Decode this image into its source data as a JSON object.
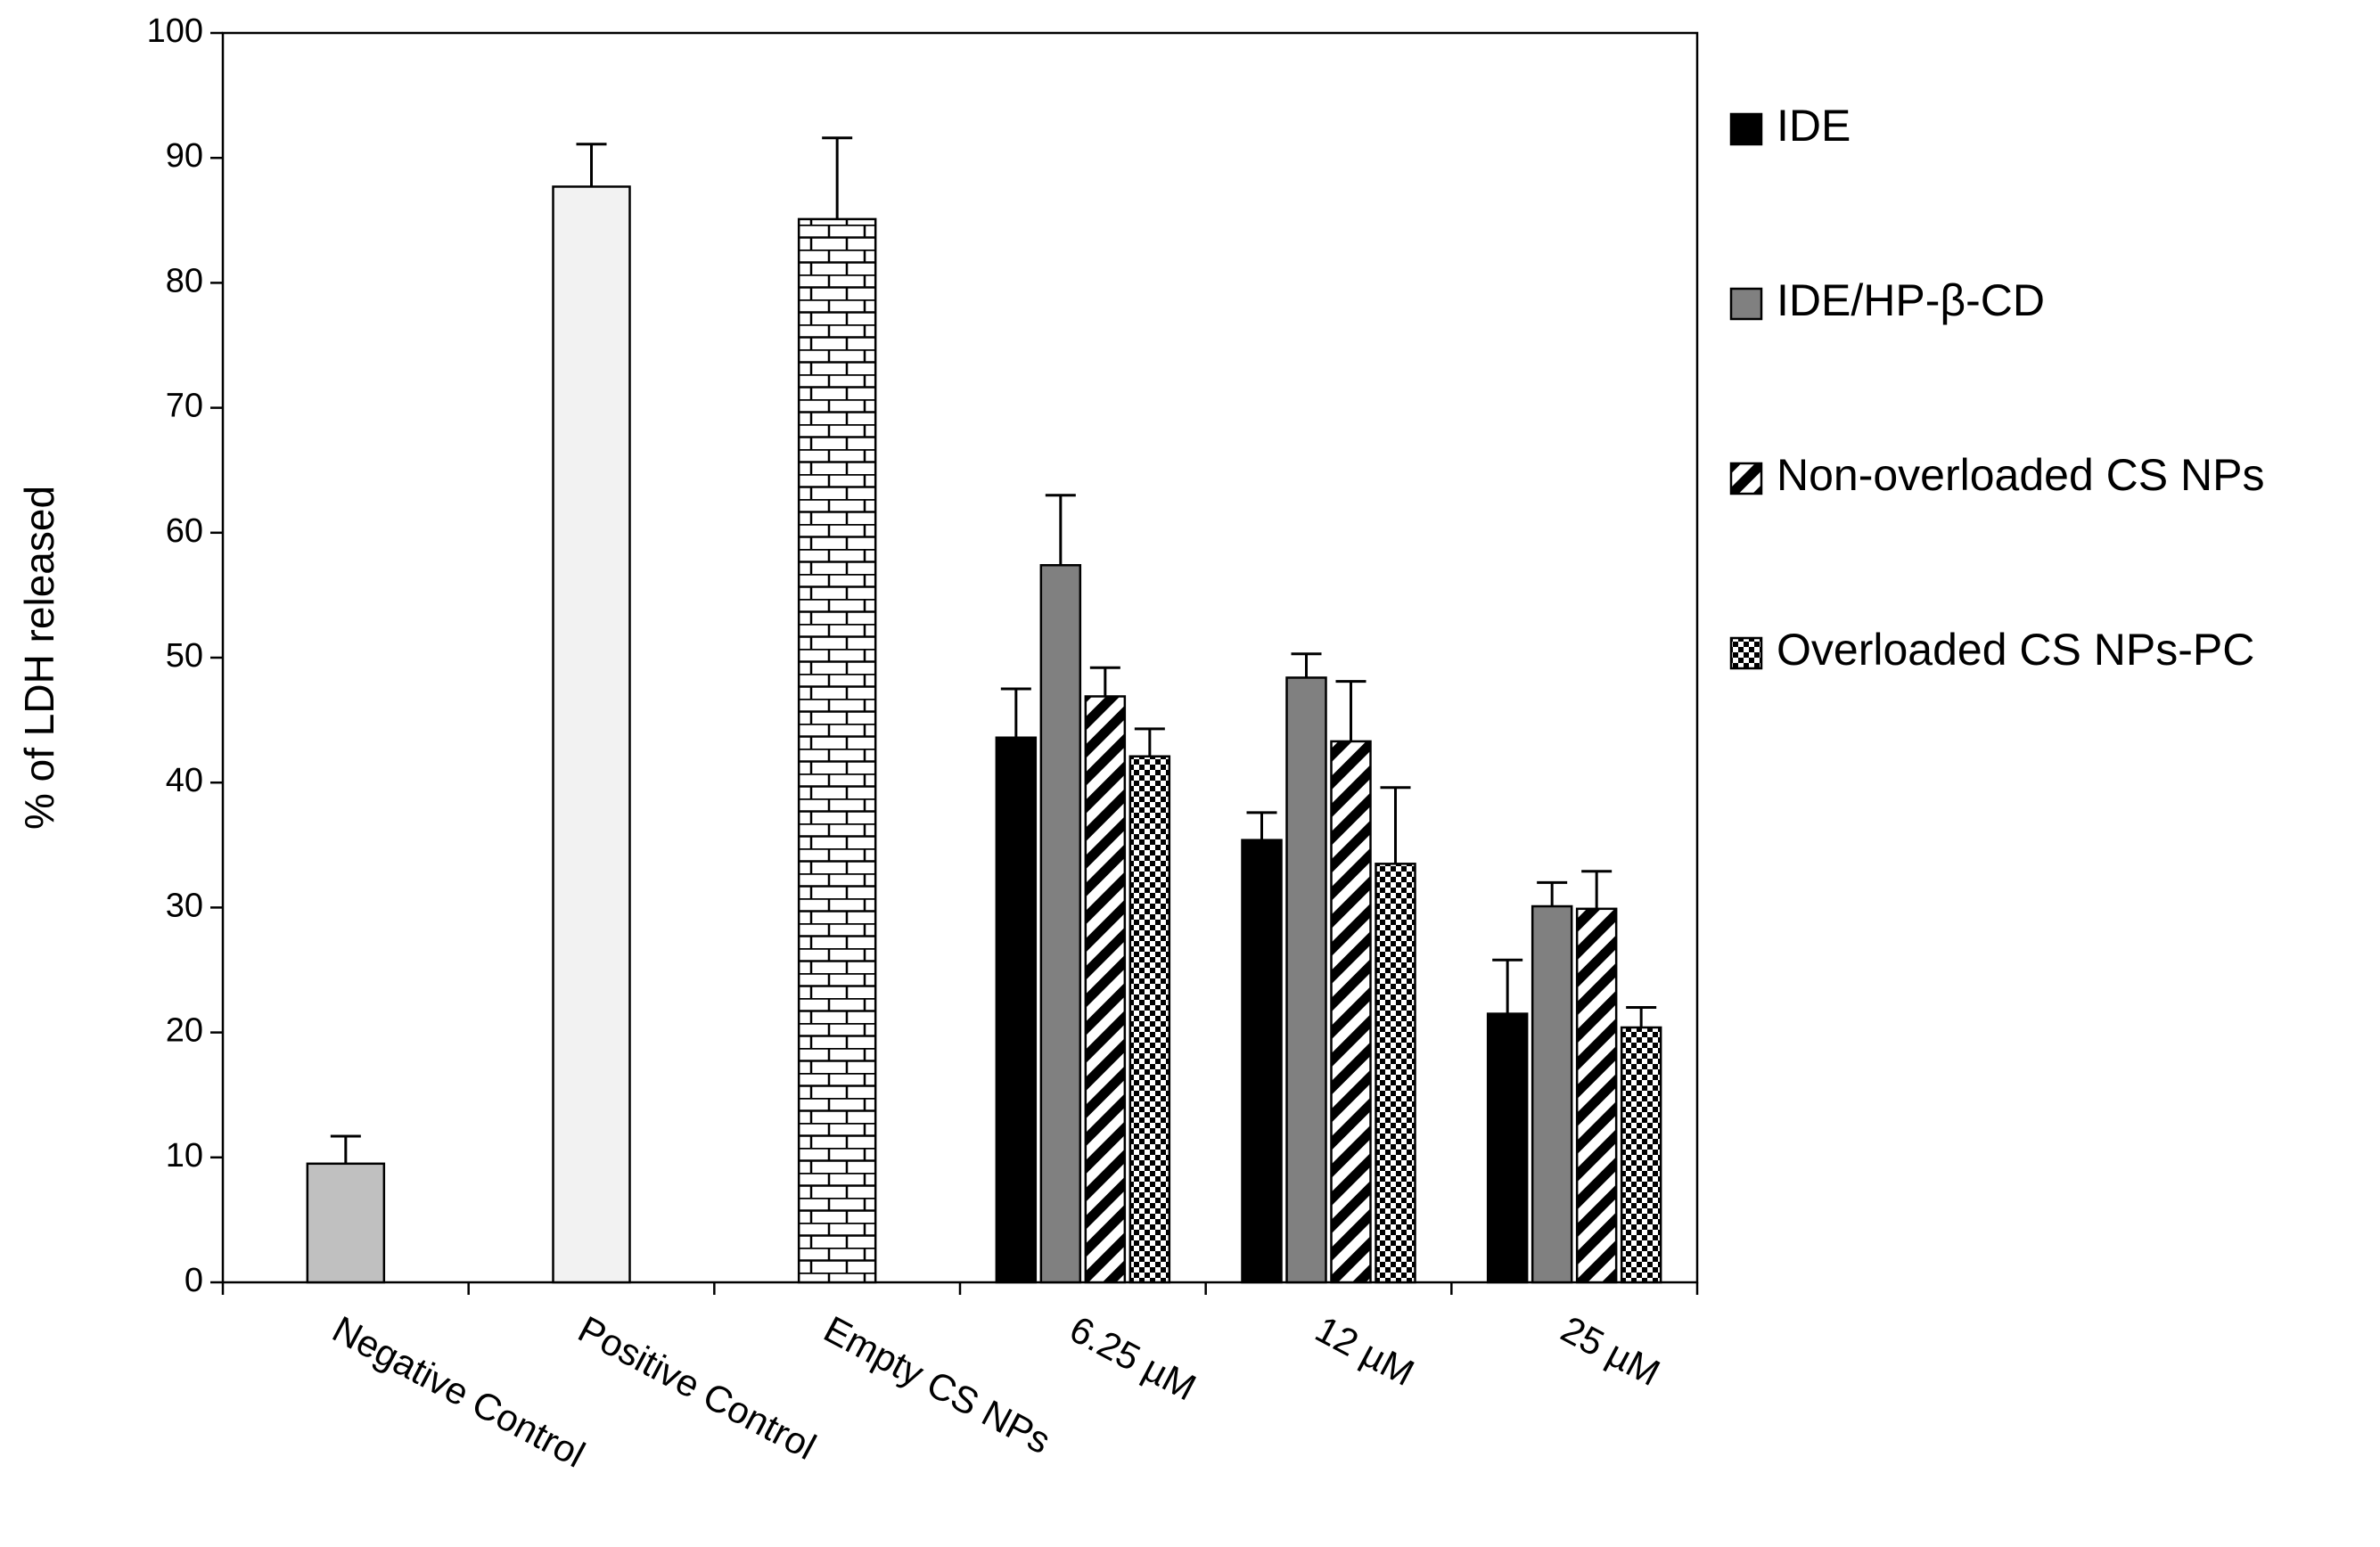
{
  "chart_data": {
    "type": "bar",
    "y_label": "% of LDH released",
    "categories": [
      "Negative Control",
      "Positive Control",
      "Empty CS NPs",
      "6.25 µM",
      "12 µM",
      "25 µM"
    ],
    "control_values": [
      9.5,
      87.7,
      85.1,
      null,
      null,
      null
    ],
    "control_errors": [
      2.2,
      3.4,
      6.5,
      null,
      null,
      null
    ],
    "control_colors": [
      "#c0c0c0",
      "#f2f2f2",
      "#ffffff"
    ],
    "control_patterns": [
      "solid",
      "solid",
      "brick"
    ],
    "series": [
      {
        "name": "IDE",
        "color": "#000000",
        "pattern": "solid",
        "values": [
          null,
          null,
          null,
          43.6,
          35.4,
          21.5
        ],
        "errors": [
          null,
          null,
          null,
          3.9,
          2.2,
          4.3
        ]
      },
      {
        "name": "IDE/HP-β-CD",
        "color": "#808080",
        "pattern": "solid",
        "values": [
          null,
          null,
          null,
          57.4,
          48.4,
          30.1
        ],
        "errors": [
          null,
          null,
          null,
          5.6,
          1.9,
          1.9
        ]
      },
      {
        "name": "Non-overloaded CS NPs",
        "color": "#000000",
        "pattern": "diagonal",
        "values": [
          null,
          null,
          null,
          46.9,
          43.3,
          29.9
        ],
        "errors": [
          null,
          null,
          null,
          2.3,
          4.8,
          3.0
        ]
      },
      {
        "name": "Overloaded CS NPs-PC",
        "color": "#000000",
        "pattern": "checker",
        "values": [
          null,
          null,
          null,
          42.1,
          33.5,
          20.4
        ],
        "errors": [
          null,
          null,
          null,
          2.2,
          6.1,
          1.6
        ]
      }
    ],
    "ylim": [
      0,
      100
    ],
    "yticks": [
      0,
      10,
      20,
      30,
      40,
      50,
      60,
      70,
      80,
      90,
      100
    ],
    "legend": "right"
  }
}
